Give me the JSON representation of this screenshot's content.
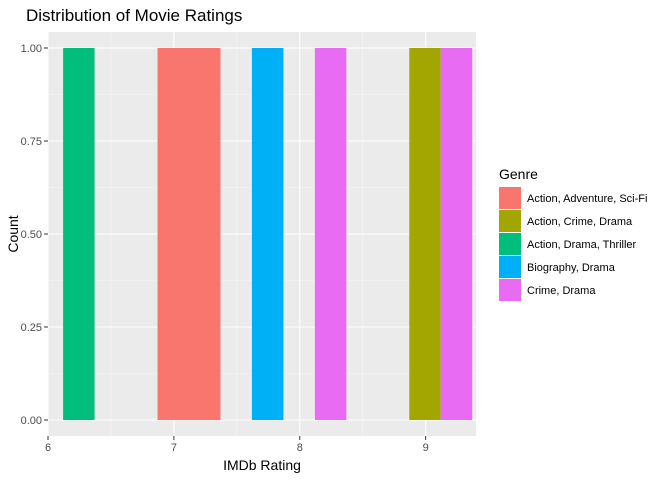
{
  "chart_data": {
    "type": "bar",
    "title": "Distribution of Movie Ratings",
    "xlabel": "IMDb Rating",
    "ylabel": "Count",
    "xlim": [
      6.0,
      9.4
    ],
    "ylim": [
      0,
      1
    ],
    "x_ticks": [
      {
        "value": 6,
        "label": "6"
      },
      {
        "value": 7,
        "label": "7"
      },
      {
        "value": 8,
        "label": "8"
      },
      {
        "value": 9,
        "label": "9"
      }
    ],
    "y_ticks": [
      {
        "value": 0,
        "label": "0.00"
      },
      {
        "value": 0.25,
        "label": "0.25"
      },
      {
        "value": 0.5,
        "label": "0.50"
      },
      {
        "value": 0.75,
        "label": "0.75"
      },
      {
        "value": 1,
        "label": "1.00"
      }
    ],
    "grid": true,
    "legend": {
      "title": "Genre",
      "placement": "right",
      "entries": [
        {
          "label": "Action, Adventure, Sci-Fi",
          "color": "#F8766D"
        },
        {
          "label": "Action, Crime, Drama",
          "color": "#A3A500"
        },
        {
          "label": "Action, Drama, Thriller",
          "color": "#00BF7D"
        },
        {
          "label": "Biography, Drama",
          "color": "#00B0F6"
        },
        {
          "label": "Crime, Drama",
          "color": "#E76BF3"
        }
      ]
    },
    "bars": [
      {
        "genre": "Action, Drama, Thriller",
        "x_start": 6.12,
        "x_end": 6.37,
        "count": 1
      },
      {
        "genre": "Action, Adventure, Sci-Fi",
        "x_start": 6.87,
        "x_end": 7.37,
        "count": 1
      },
      {
        "genre": "Biography, Drama",
        "x_start": 7.62,
        "x_end": 7.87,
        "count": 1
      },
      {
        "genre": "Crime, Drama",
        "x_start": 8.12,
        "x_end": 8.37,
        "count": 1
      },
      {
        "genre": "Action, Crime, Drama",
        "x_start": 8.87,
        "x_end": 9.12,
        "count": 1
      },
      {
        "genre": "Crime, Drama",
        "x_start": 9.12,
        "x_end": 9.37,
        "count": 1
      }
    ]
  }
}
